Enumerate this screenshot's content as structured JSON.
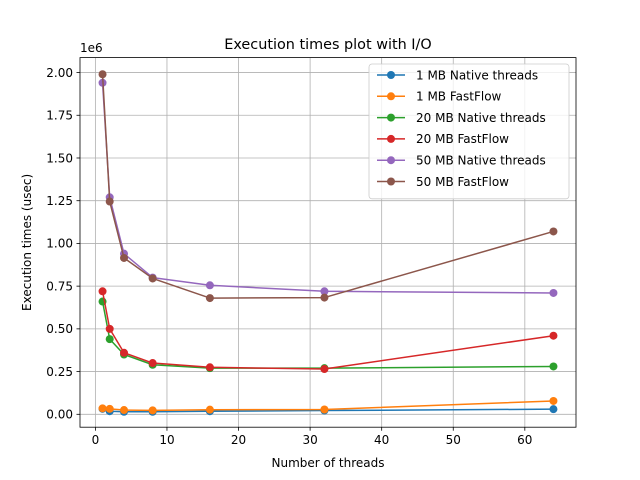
{
  "chart_data": {
    "type": "line",
    "title": "Execution times plot with I/O",
    "xlabel": "Number of threads",
    "ylabel": "Execution times (usec)",
    "y_offset_label": "1e6",
    "xlim": [
      -2.15,
      67.15
    ],
    "ylim": [
      -0.0755,
      2.0875
    ],
    "x_ticks": [
      0,
      10,
      20,
      30,
      40,
      50,
      60
    ],
    "y_ticks": [
      0.0,
      0.25,
      0.5,
      0.75,
      1.0,
      1.25,
      1.5,
      1.75,
      2.0
    ],
    "y_tick_labels": [
      "0.00",
      "0.25",
      "0.50",
      "0.75",
      "1.00",
      "1.25",
      "1.50",
      "1.75",
      "2.00"
    ],
    "grid": true,
    "legend_position": "top-right",
    "series": [
      {
        "name": "1 MB Native threads",
        "color": "#1f77b4",
        "x": [
          1,
          2,
          4,
          8,
          16,
          32,
          64
        ],
        "y": [
          0.032,
          0.018,
          0.015,
          0.015,
          0.018,
          0.022,
          0.03
        ]
      },
      {
        "name": "1 MB FastFlow",
        "color": "#ff7f0e",
        "x": [
          1,
          2,
          4,
          8,
          16,
          32,
          64
        ],
        "y": [
          0.035,
          0.032,
          0.025,
          0.023,
          0.027,
          0.028,
          0.078
        ]
      },
      {
        "name": "20 MB Native threads",
        "color": "#2ca02c",
        "x": [
          1,
          2,
          4,
          8,
          16,
          32,
          64
        ],
        "y": [
          0.66,
          0.44,
          0.35,
          0.29,
          0.27,
          0.27,
          0.28
        ]
      },
      {
        "name": "20 MB FastFlow",
        "color": "#d62728",
        "x": [
          1,
          2,
          4,
          8,
          16,
          32,
          64
        ],
        "y": [
          0.72,
          0.5,
          0.36,
          0.3,
          0.275,
          0.265,
          0.46
        ]
      },
      {
        "name": "50 MB Native threads",
        "color": "#9467bd",
        "x": [
          1,
          2,
          4,
          8,
          16,
          32,
          64
        ],
        "y": [
          1.94,
          1.27,
          0.94,
          0.8,
          0.755,
          0.72,
          0.71
        ]
      },
      {
        "name": "50 MB FastFlow",
        "color": "#8c564b",
        "x": [
          1,
          2,
          4,
          8,
          16,
          32,
          64
        ],
        "y": [
          1.99,
          1.245,
          0.915,
          0.795,
          0.68,
          0.683,
          1.07
        ]
      }
    ]
  }
}
